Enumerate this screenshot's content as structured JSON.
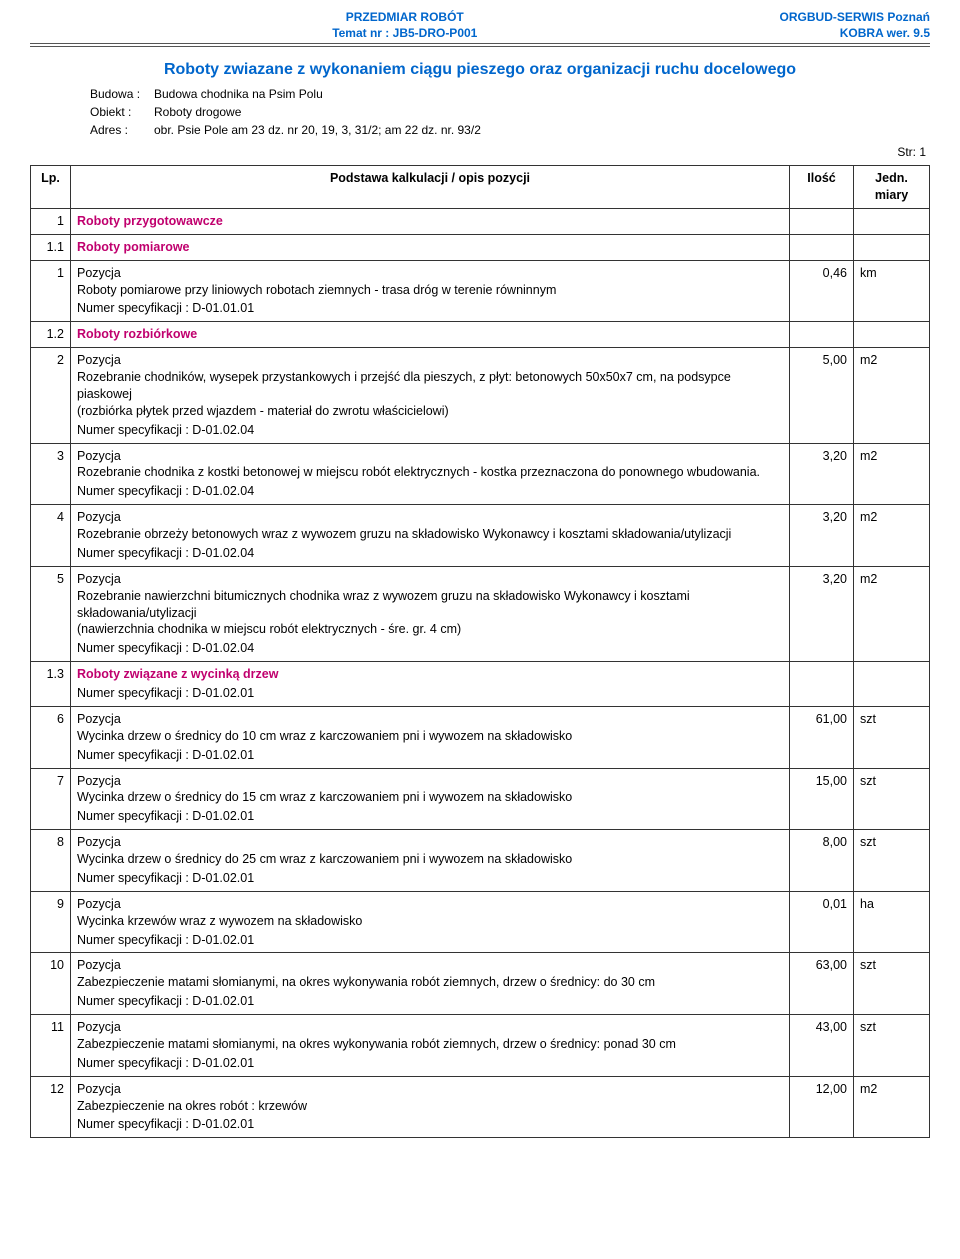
{
  "header": {
    "title_line1": "PRZEDMIAR ROBÓT",
    "title_line2": "Temat nr : JB5-DRO-P001",
    "company_line1": "ORGBUD-SERWIS Poznań",
    "company_line2": "KOBRA wer. 9.5",
    "project_title": "Roboty zwiazane z wykonaniem ciągu pieszego oraz organizacji ruchu docelowego",
    "meta": {
      "budowa_label": "Budowa : ",
      "budowa_value": "Budowa chodnika na Psim Polu",
      "obiekt_label": "Obiekt : ",
      "obiekt_value": "Roboty drogowe",
      "adres_label": "Adres : ",
      "adres_value": "obr. Psie Pole am 23 dz. nr 20, 19, 3, 31/2; am 22 dz. nr. 93/2"
    },
    "page_str": "Str: 1"
  },
  "columns": {
    "lp": "Lp.",
    "desc": "Podstawa kalkulacji / opis pozycji",
    "qty": "Ilość",
    "unit": "Jedn. miary"
  },
  "rows": [
    {
      "type": "h1",
      "lp": "1",
      "desc": "Roboty przygotowawcze"
    },
    {
      "type": "h2",
      "lp": "1.1",
      "desc": "Roboty pomiarowe"
    },
    {
      "type": "pos",
      "lp": "1",
      "title": "Pozycja",
      "qty": "0,46",
      "unit": "km",
      "body": "Roboty pomiarowe przy liniowych robotach ziemnych - trasa dróg w terenie równinnym",
      "spec": "Numer specyfikacji :  D-01.01.01"
    },
    {
      "type": "h2",
      "lp": "1.2",
      "desc": "Roboty rozbiórkowe"
    },
    {
      "type": "pos",
      "lp": "2",
      "title": "Pozycja",
      "qty": "5,00",
      "unit": "m2",
      "body": "Rozebranie chodników, wysepek przystankowych i przejść dla pieszych, z płyt: betonowych 50x50x7 cm, na podsypce piaskowej\n(rozbiórka płytek przed wjazdem - materiał do zwrotu właścicielowi)",
      "spec": "Numer specyfikacji :  D-01.02.04"
    },
    {
      "type": "pos",
      "lp": "3",
      "title": "Pozycja",
      "qty": "3,20",
      "unit": "m2",
      "body": "Rozebranie chodnika z kostki betonowej w miejscu robót elektrycznych  - kostka przeznaczona do ponownego wbudowania.",
      "spec": "Numer specyfikacji :  D-01.02.04"
    },
    {
      "type": "pos",
      "lp": "4",
      "title": "Pozycja",
      "qty": "3,20",
      "unit": "m2",
      "body": "Rozebranie obrzeży betonowych wraz z wywozem gruzu na składowisko Wykonawcy i kosztami składowania/utylizacji",
      "spec": "Numer specyfikacji :  D-01.02.04"
    },
    {
      "type": "pos",
      "lp": "5",
      "title": "Pozycja",
      "qty": "3,20",
      "unit": "m2",
      "body": "Rozebranie nawierzchni bitumicznych chodnika  wraz z wywozem gruzu na składowisko Wykonawcy i kosztami składowania/utylizacji\n(nawierzchnia chodnika w miejscu robót elektrycznych - śre. gr. 4 cm)",
      "spec": "Numer specyfikacji :  D-01.02.04"
    },
    {
      "type": "h2",
      "lp": "1.3",
      "desc": "Roboty związane z wycinką drzew",
      "spec": "Numer specyfikacji :  D-01.02.01"
    },
    {
      "type": "pos",
      "lp": "6",
      "title": "Pozycja",
      "qty": "61,00",
      "unit": "szt",
      "body": "Wycinka drzew o średnicy do 10 cm wraz z karczowaniem pni i wywozem na składowisko",
      "spec": "Numer specyfikacji :  D-01.02.01"
    },
    {
      "type": "pos",
      "lp": "7",
      "title": "Pozycja",
      "qty": "15,00",
      "unit": "szt",
      "body": "Wycinka drzew o średnicy do 15 cm wraz z karczowaniem pni i wywozem na składowisko",
      "spec": "Numer specyfikacji :  D-01.02.01"
    },
    {
      "type": "pos",
      "lp": "8",
      "title": "Pozycja",
      "qty": "8,00",
      "unit": "szt",
      "body": "Wycinka drzew o średnicy do 25 cm wraz z karczowaniem pni i wywozem na składowisko",
      "spec": "Numer specyfikacji :  D-01.02.01"
    },
    {
      "type": "pos",
      "lp": "9",
      "title": "Pozycja",
      "qty": "0,01",
      "unit": "ha",
      "body": "Wycinka krzewów wraz z  wywozem na składowisko",
      "spec": "Numer specyfikacji :  D-01.02.01"
    },
    {
      "type": "pos",
      "lp": "10",
      "title": "Pozycja",
      "qty": "63,00",
      "unit": "szt",
      "body": "Zabezpieczenie matami słomianymi, na okres wykonywania robót ziemnych, drzew o średnicy: do 30 cm",
      "spec": "Numer specyfikacji :  D-01.02.01"
    },
    {
      "type": "pos",
      "lp": "11",
      "title": "Pozycja",
      "qty": "43,00",
      "unit": "szt",
      "body": "Zabezpieczenie matami słomianymi, na okres wykonywania robót ziemnych, drzew o średnicy: ponad 30 cm",
      "spec": "Numer specyfikacji :  D-01.02.01"
    },
    {
      "type": "pos",
      "lp": "12",
      "title": "Pozycja",
      "qty": "12,00",
      "unit": "m2",
      "body": "Zabezpieczenie na okres robót : krzewów",
      "spec": "Numer specyfikacji :  D-01.02.01"
    }
  ]
}
